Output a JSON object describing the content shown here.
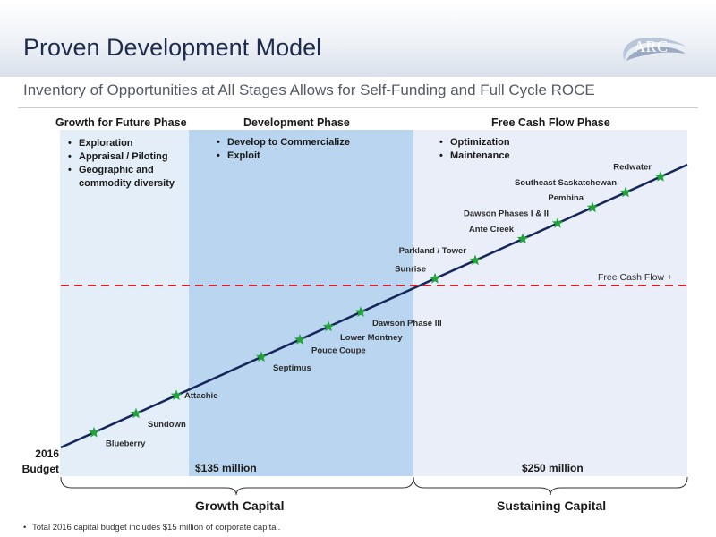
{
  "header": {
    "title": "Proven Development Model",
    "subtitle": "Inventory of Opportunities at All Stages Allows for Self-Funding and Full Cycle ROCE",
    "logo_text": "ARC"
  },
  "phases": [
    {
      "title": "Growth for Future Phase",
      "bullets": [
        "Exploration",
        "Appraisal / Piloting",
        "Geographic and commodity diversity"
      ]
    },
    {
      "title": "Development Phase",
      "bullets": [
        "Develop to Commercialize",
        "Exploit"
      ]
    },
    {
      "title": "Free Cash Flow Phase",
      "bullets": [
        "Optimization",
        "Maintenance"
      ]
    }
  ],
  "amounts": {
    "development": "$135 million",
    "free_cash_flow": "$250 million"
  },
  "budget_label": {
    "line1": "2016",
    "line2": "Budget"
  },
  "free_cash_flow_line_label": "Free Cash Flow +",
  "projects": [
    {
      "name": "Blueberry",
      "label_side": "below"
    },
    {
      "name": "Sundown",
      "label_side": "below"
    },
    {
      "name": "Attachie",
      "label_side": "above"
    },
    {
      "name": "Septimus",
      "label_side": "below"
    },
    {
      "name": "Pouce Coupe",
      "label_side": "below"
    },
    {
      "name": "Lower Montney",
      "label_side": "below"
    },
    {
      "name": "Dawson Phase III",
      "label_side": "below"
    },
    {
      "name": "Sunrise",
      "label_side": "left"
    },
    {
      "name": "Parkland / Tower",
      "label_side": "left"
    },
    {
      "name": "Ante Creek",
      "label_side": "left"
    },
    {
      "name": "Dawson Phases I & II",
      "label_side": "left"
    },
    {
      "name": "Pembina",
      "label_side": "left"
    },
    {
      "name": "Southeast Saskatchewan",
      "label_side": "left"
    },
    {
      "name": "Redwater",
      "label_side": "left"
    }
  ],
  "capital": {
    "growth": "Growth Capital",
    "sustaining": "Sustaining Capital"
  },
  "footnote": "Total 2016 capital budget includes $15 million of corporate capital.",
  "colors": {
    "trend_line": "#15265a",
    "star": "#1fa33a",
    "free_cash_flow_line": "#e31b23",
    "title": "#1f2c4d"
  }
}
